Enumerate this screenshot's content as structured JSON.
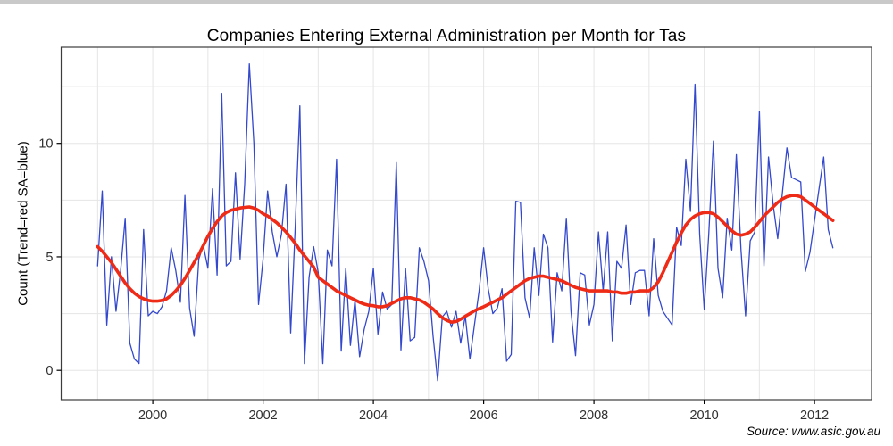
{
  "title": "Companies Entering External Administration per Month for Tas",
  "y_axis_label": "Count (Trend=red SA=blue)",
  "source_note": "Source: www.asic.gov.au",
  "colors": {
    "sa_line": "#3348cc",
    "trend_line": "#ee2b17",
    "grid": "#e5e5e5",
    "panel_border": "#3c3c3c",
    "tick_text": "#303030",
    "background": "#ffffff"
  },
  "chart_data": {
    "type": "line",
    "title": "Companies Entering External Administration per Month for Tas",
    "xlabel": "",
    "ylabel": "Count (Trend=red SA=blue)",
    "x_start_year": 1999,
    "x_start_month": 1,
    "frequency": "monthly",
    "x_ticks": [
      2000,
      2002,
      2004,
      2006,
      2008,
      2010,
      2012
    ],
    "x_minor_grid_years": [
      1999,
      2001,
      2003,
      2005,
      2007,
      2009,
      2011
    ],
    "y_ticks": [
      0,
      5,
      10
    ],
    "y_grid_step": 2.5,
    "ylim": [
      -1.3,
      14.2
    ],
    "xlim": [
      1998.34,
      2013.0
    ],
    "grid": true,
    "legend_position": "none",
    "annotation": "Source: www.asic.gov.au",
    "series": [
      {
        "name": "SA (seasonally adjusted, blue)",
        "color": "#3348cc",
        "width": 1.3,
        "monthly_values": [
          4.6,
          7.9,
          2.0,
          5.0,
          2.6,
          4.4,
          6.7,
          1.2,
          0.5,
          0.3,
          6.2,
          2.4,
          2.6,
          2.5,
          2.8,
          3.5,
          5.4,
          4.4,
          3.0,
          7.7,
          2.75,
          1.5,
          4.9,
          5.5,
          4.5,
          8.0,
          4.2,
          12.2,
          4.6,
          4.8,
          8.7,
          4.9,
          8.2,
          13.5,
          10.0,
          2.9,
          4.9,
          7.9,
          6.1,
          5.0,
          6.0,
          8.2,
          1.65,
          6.3,
          11.65,
          0.3,
          4.1,
          5.45,
          4.3,
          0.3,
          5.3,
          4.6,
          9.3,
          0.85,
          4.5,
          1.1,
          3.1,
          0.6,
          1.8,
          2.6,
          4.5,
          1.6,
          3.45,
          2.7,
          2.9,
          9.15,
          0.9,
          4.5,
          1.3,
          1.45,
          5.4,
          4.8,
          3.95,
          1.5,
          -0.45,
          2.35,
          2.6,
          1.9,
          2.6,
          1.2,
          2.4,
          0.5,
          2.0,
          3.5,
          5.4,
          3.6,
          2.5,
          2.75,
          3.6,
          0.4,
          0.7,
          7.45,
          7.4,
          3.2,
          2.3,
          5.4,
          3.3,
          6.0,
          5.4,
          1.25,
          4.3,
          3.5,
          6.7,
          2.6,
          0.65,
          4.3,
          4.2,
          2.0,
          2.9,
          6.1,
          3.5,
          6.1,
          1.3,
          4.8,
          4.5,
          6.4,
          2.9,
          4.3,
          4.4,
          4.4,
          2.4,
          5.8,
          3.3,
          2.6,
          2.3,
          2.0,
          6.3,
          5.5,
          9.3,
          7.0,
          12.6,
          6.0,
          2.7,
          6.0,
          10.1,
          4.5,
          3.2,
          6.7,
          5.3,
          9.5,
          5.3,
          2.4,
          5.7,
          6.1,
          11.4,
          4.6,
          9.4,
          7.3,
          5.8,
          7.8,
          9.8,
          8.5,
          8.4,
          8.3,
          4.35,
          5.2,
          6.6,
          8.0,
          9.4,
          6.2,
          5.4
        ]
      },
      {
        "name": "Trend (red)",
        "color": "#ee2b17",
        "width": 3.6,
        "monthly_values": [
          5.45,
          5.25,
          5.0,
          4.75,
          4.45,
          4.15,
          3.85,
          3.6,
          3.4,
          3.25,
          3.15,
          3.08,
          3.05,
          3.05,
          3.08,
          3.15,
          3.3,
          3.5,
          3.75,
          4.05,
          4.4,
          4.75,
          5.1,
          5.5,
          5.9,
          6.25,
          6.55,
          6.8,
          6.95,
          7.05,
          7.1,
          7.15,
          7.18,
          7.2,
          7.15,
          7.05,
          6.9,
          6.8,
          6.65,
          6.5,
          6.3,
          6.1,
          5.85,
          5.6,
          5.3,
          5.05,
          4.8,
          4.55,
          4.1,
          3.95,
          3.8,
          3.65,
          3.5,
          3.4,
          3.3,
          3.2,
          3.1,
          3.0,
          2.92,
          2.87,
          2.85,
          2.8,
          2.8,
          2.85,
          2.95,
          3.05,
          3.15,
          3.2,
          3.2,
          3.15,
          3.1,
          3.0,
          2.85,
          2.7,
          2.5,
          2.32,
          2.2,
          2.12,
          2.15,
          2.25,
          2.38,
          2.5,
          2.62,
          2.72,
          2.8,
          2.9,
          3.0,
          3.1,
          3.2,
          3.35,
          3.5,
          3.65,
          3.8,
          3.95,
          4.05,
          4.1,
          4.15,
          4.15,
          4.1,
          4.05,
          4.0,
          3.95,
          3.85,
          3.75,
          3.65,
          3.6,
          3.55,
          3.5,
          3.5,
          3.5,
          3.5,
          3.5,
          3.45,
          3.45,
          3.4,
          3.4,
          3.45,
          3.45,
          3.5,
          3.5,
          3.5,
          3.65,
          3.9,
          4.3,
          4.75,
          5.2,
          5.65,
          6.05,
          6.4,
          6.65,
          6.8,
          6.9,
          6.95,
          6.95,
          6.9,
          6.75,
          6.55,
          6.35,
          6.15,
          6.0,
          5.95,
          6.0,
          6.1,
          6.3,
          6.55,
          6.8,
          7.0,
          7.2,
          7.4,
          7.55,
          7.65,
          7.7,
          7.7,
          7.65,
          7.5,
          7.35,
          7.2,
          7.05,
          6.9,
          6.75,
          6.6
        ]
      }
    ]
  }
}
